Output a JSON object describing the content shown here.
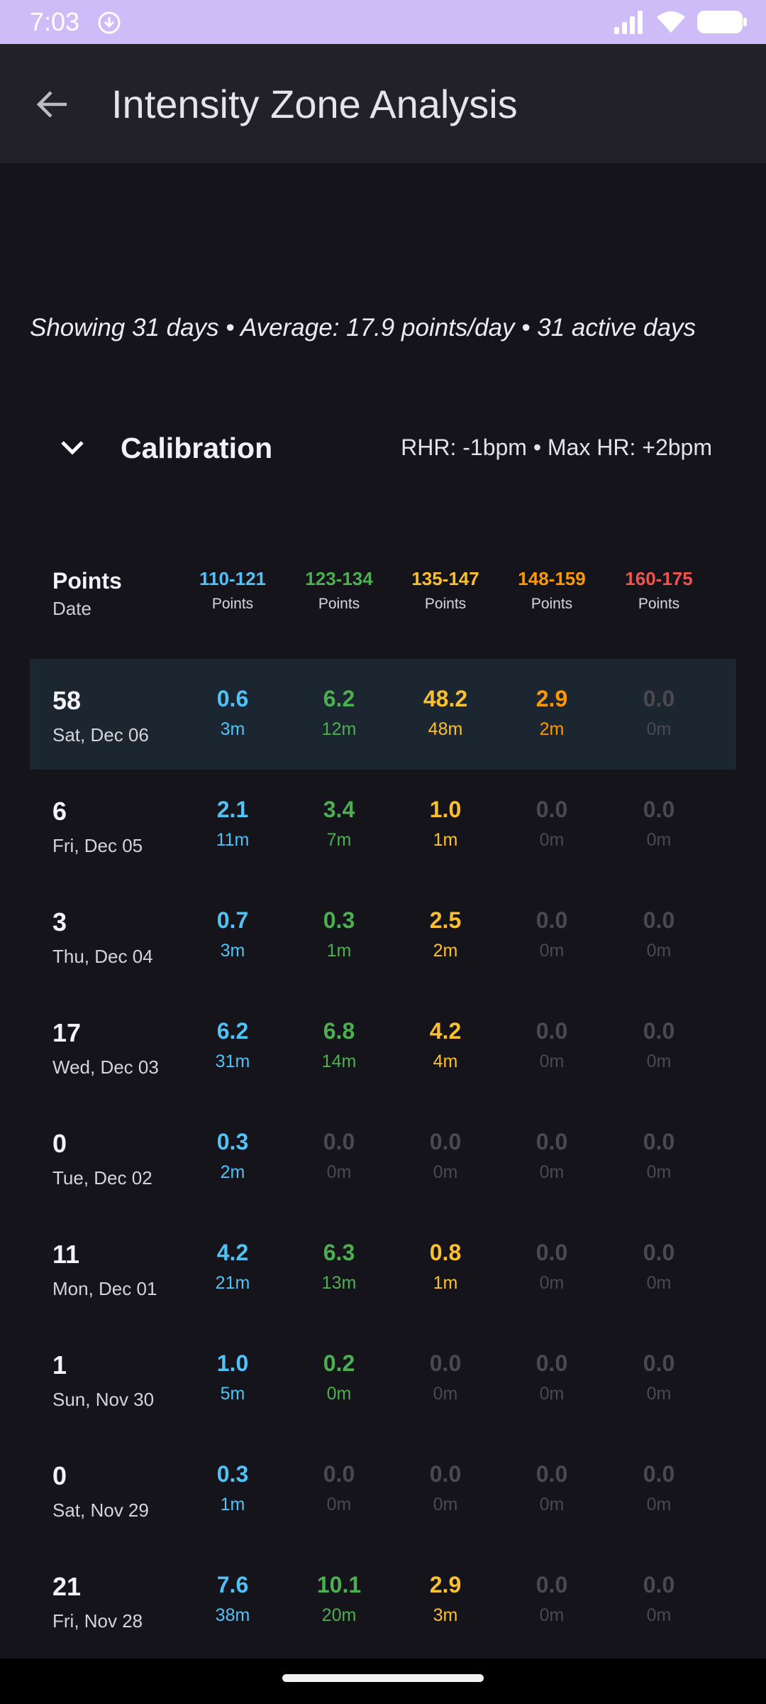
{
  "status_bar": {
    "time": "7:03",
    "icons": [
      "download-icon",
      "signal-icon",
      "wifi-icon",
      "battery-icon"
    ]
  },
  "app_bar": {
    "title": "Intensity Zone Analysis",
    "back_icon": "arrow-left-icon"
  },
  "summary": "Showing 31 days • Average: 17.9 points/day • 31 active days",
  "calibration": {
    "title": "Calibration",
    "info": "RHR: -1bpm • Max HR: +2bpm",
    "icon": "chevron-down-icon"
  },
  "table_header": {
    "points_label": "Points",
    "date_label": "Date",
    "zones": [
      {
        "range": "110-121",
        "sub": "Points",
        "color": "#4fc3f7"
      },
      {
        "range": "123-134",
        "sub": "Points",
        "color": "#4caf50"
      },
      {
        "range": "135-147",
        "sub": "Points",
        "color": "#fbc02d"
      },
      {
        "range": "148-159",
        "sub": "Points",
        "color": "#ff9800"
      },
      {
        "range": "160-175",
        "sub": "Points",
        "color": "#ef5350"
      }
    ]
  },
  "colors": {
    "zone1": "#4fc3f7",
    "zone2": "#4caf50",
    "zone3": "#fbc02d",
    "zone4": "#ff9800",
    "zone5": "#ef5350",
    "zero": "#4a4950",
    "highlight": "#1b2630"
  },
  "rows": [
    {
      "total": "58",
      "date": "Sat, Dec 06",
      "cells": [
        [
          "0.6",
          "3m"
        ],
        [
          "6.2",
          "12m"
        ],
        [
          "48.2",
          "48m"
        ],
        [
          "2.9",
          "2m"
        ],
        [
          "0.0",
          "0m"
        ]
      ]
    },
    {
      "total": "6",
      "date": "Fri, Dec 05",
      "cells": [
        [
          "2.1",
          "11m"
        ],
        [
          "3.4",
          "7m"
        ],
        [
          "1.0",
          "1m"
        ],
        [
          "0.0",
          "0m"
        ],
        [
          "0.0",
          "0m"
        ]
      ]
    },
    {
      "total": "3",
      "date": "Thu, Dec 04",
      "cells": [
        [
          "0.7",
          "3m"
        ],
        [
          "0.3",
          "1m"
        ],
        [
          "2.5",
          "2m"
        ],
        [
          "0.0",
          "0m"
        ],
        [
          "0.0",
          "0m"
        ]
      ]
    },
    {
      "total": "17",
      "date": "Wed, Dec 03",
      "cells": [
        [
          "6.2",
          "31m"
        ],
        [
          "6.8",
          "14m"
        ],
        [
          "4.2",
          "4m"
        ],
        [
          "0.0",
          "0m"
        ],
        [
          "0.0",
          "0m"
        ]
      ]
    },
    {
      "total": "0",
      "date": "Tue, Dec 02",
      "cells": [
        [
          "0.3",
          "2m"
        ],
        [
          "0.0",
          "0m"
        ],
        [
          "0.0",
          "0m"
        ],
        [
          "0.0",
          "0m"
        ],
        [
          "0.0",
          "0m"
        ]
      ]
    },
    {
      "total": "11",
      "date": "Mon, Dec 01",
      "cells": [
        [
          "4.2",
          "21m"
        ],
        [
          "6.3",
          "13m"
        ],
        [
          "0.8",
          "1m"
        ],
        [
          "0.0",
          "0m"
        ],
        [
          "0.0",
          "0m"
        ]
      ]
    },
    {
      "total": "1",
      "date": "Sun, Nov 30",
      "cells": [
        [
          "1.0",
          "5m"
        ],
        [
          "0.2",
          "0m"
        ],
        [
          "0.0",
          "0m"
        ],
        [
          "0.0",
          "0m"
        ],
        [
          "0.0",
          "0m"
        ]
      ]
    },
    {
      "total": "0",
      "date": "Sat, Nov 29",
      "cells": [
        [
          "0.3",
          "1m"
        ],
        [
          "0.0",
          "0m"
        ],
        [
          "0.0",
          "0m"
        ],
        [
          "0.0",
          "0m"
        ],
        [
          "0.0",
          "0m"
        ]
      ]
    },
    {
      "total": "21",
      "date": "Fri, Nov 28",
      "cells": [
        [
          "7.6",
          "38m"
        ],
        [
          "10.1",
          "20m"
        ],
        [
          "2.9",
          "3m"
        ],
        [
          "0.0",
          "0m"
        ],
        [
          "0.0",
          "0m"
        ]
      ]
    }
  ]
}
